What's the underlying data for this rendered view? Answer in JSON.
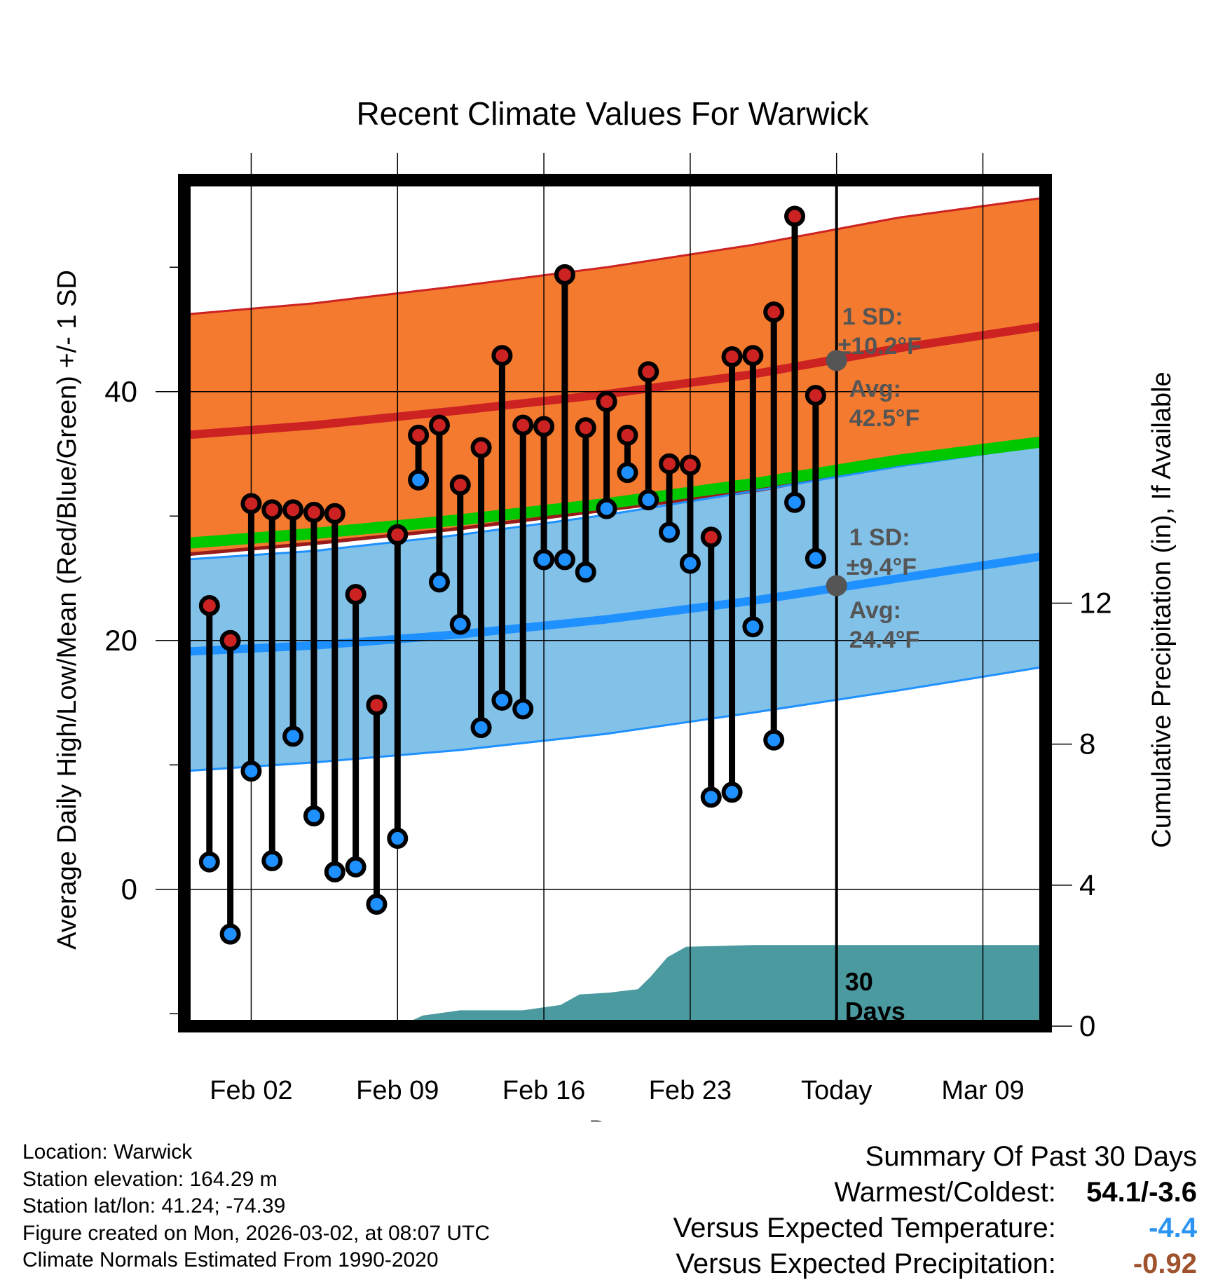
{
  "chart_data": {
    "type": "line",
    "title": "Recent Climate Values For Warwick",
    "xlabel": "Day",
    "ylabel_left": "Average Daily High/Low/Mean (Red/Blue/Green) +/- 1 SD",
    "ylabel_right": "Cumulative Precipitation (in), If Available",
    "x_range_days": [
      -31.2,
      10
    ],
    "ylim_temp": [
      -11,
      57
    ],
    "ylim_precip": [
      0,
      24
    ],
    "x_ticks": [
      {
        "day": -28,
        "label": "Feb 02"
      },
      {
        "day": -21,
        "label": "Feb 09"
      },
      {
        "day": -14,
        "label": "Feb 16"
      },
      {
        "day": -7,
        "label": "Feb 23"
      },
      {
        "day": 0,
        "label": "Today"
      },
      {
        "day": 7,
        "label": "Mar 09"
      }
    ],
    "y_ticks_left": [
      "0",
      "20",
      "40"
    ],
    "y_ticks_right": [
      "0",
      "4",
      "8",
      "12"
    ],
    "normals": {
      "day": [
        -31.2,
        -25,
        -18,
        -11,
        -4,
        3,
        10
      ],
      "high_avg": [
        36.5,
        37.3,
        38.5,
        39.8,
        41.4,
        43.5,
        45.3
      ],
      "high_sd_upper": [
        46.2,
        47.1,
        48.5,
        50.0,
        51.8,
        54.0,
        55.6
      ],
      "high_sd_lower": [
        26.9,
        27.8,
        29.0,
        30.5,
        32.0,
        34.2,
        36.3
      ],
      "low_avg": [
        19.1,
        19.6,
        20.5,
        21.7,
        23.2,
        25.0,
        26.8
      ],
      "low_sd_upper": [
        26.5,
        27.2,
        28.5,
        30.1,
        32.0,
        34.0,
        35.7
      ],
      "low_sd_lower": [
        9.5,
        10.2,
        11.2,
        12.5,
        14.2,
        16.0,
        17.9
      ],
      "mean_avg": [
        27.8,
        28.6,
        29.7,
        31.0,
        32.6,
        34.5,
        36.0
      ]
    },
    "daily": {
      "day": [
        -30,
        -29,
        -28,
        -27,
        -26,
        -25,
        -24,
        -23,
        -22,
        -21,
        -20,
        -19,
        -18,
        -17,
        -16,
        -15,
        -14,
        -13,
        -12,
        -11,
        -10,
        -9,
        -8,
        -7,
        -6,
        -5,
        -4,
        -3,
        -2,
        -1
      ],
      "high": [
        22.8,
        20.0,
        31.0,
        30.5,
        30.5,
        30.3,
        30.2,
        23.7,
        14.8,
        28.5,
        36.5,
        37.3,
        32.5,
        35.5,
        42.9,
        37.3,
        37.2,
        49.4,
        37.1,
        39.2,
        36.5,
        41.6,
        34.2,
        34.1,
        28.3,
        42.8,
        42.9,
        46.4,
        54.1,
        39.7
      ],
      "low": [
        2.2,
        -3.6,
        9.5,
        2.3,
        12.3,
        5.9,
        1.4,
        1.8,
        -1.2,
        4.1,
        32.9,
        24.7,
        21.3,
        13.0,
        15.2,
        14.5,
        26.5,
        26.5,
        25.5,
        30.6,
        33.5,
        31.3,
        28.7,
        26.2,
        7.4,
        7.8,
        21.1,
        12.0,
        31.1,
        26.6
      ]
    },
    "precip_cumulative": {
      "day": [
        -31.2,
        -20.9,
        -19.8,
        -18,
        -15,
        -13.2,
        -12.3,
        -10.9,
        -9.5,
        -8.9,
        -8.1,
        -7.2,
        -4,
        0,
        10
      ],
      "value": [
        0,
        0,
        0.3,
        0.45,
        0.45,
        0.6,
        0.9,
        0.95,
        1.05,
        1.4,
        1.95,
        2.25,
        2.3,
        2.3,
        2.3
      ]
    },
    "annotations": {
      "high_sd_title": "1 SD:",
      "high_sd_value": "±10.2°F",
      "high_avg_title": "Avg:",
      "high_avg_value": "42.5°F",
      "low_sd_title": "1 SD:",
      "low_sd_value": "±9.4°F",
      "low_avg_title": "Avg:",
      "low_avg_value": "24.4°F",
      "days_number": "30",
      "days_word": "Days",
      "high_marker": 42.5,
      "low_marker": 24.4
    },
    "colors": {
      "high": "#cc2222",
      "high_band": "#f47a30",
      "low": "#1e90ff",
      "low_band": "#82c1e8",
      "mean": "#00c800",
      "precip": "#4a9aa0",
      "annotation": "#555555"
    }
  },
  "footer": {
    "location": "Location: Warwick",
    "elevation": "Station elevation: 164.29 m",
    "latlon": "Station lat/lon: 41.24; -74.39",
    "created": "Figure created on Mon, 2026-03-02, at 08:07 UTC",
    "normals": "Climate Normals Estimated From 1990-2020"
  },
  "summary": {
    "title": "Summary Of Past 30 Days",
    "warm_label": "Warmest/Coldest:",
    "warm_value": "54.1/-3.6",
    "temp_label": "Versus Expected Temperature:",
    "temp_value": "-4.4",
    "temp_color": "#2c95f2",
    "precip_label": "Versus Expected Precipitation:",
    "precip_value": "-0.92",
    "precip_color": "#a0522d"
  }
}
